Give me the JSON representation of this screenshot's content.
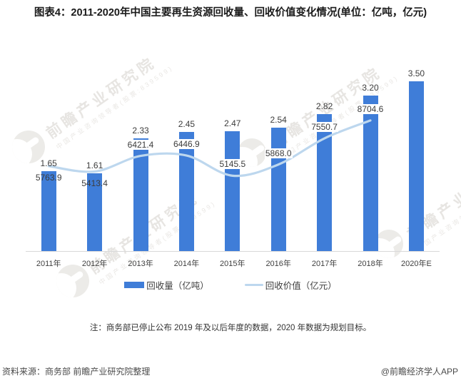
{
  "header": {
    "title": "图表4：2011-2020年中国主要再生资源回收量、回收价值变化情况(单位：亿吨，亿元)"
  },
  "chart_data": {
    "type": "bar+line",
    "categories": [
      "2011年",
      "2012年",
      "2013年",
      "2014年",
      "2015年",
      "2016年",
      "2017年",
      "2018年",
      "2020年E"
    ],
    "series": [
      {
        "name": "回收量（亿吨）",
        "type": "bar",
        "color": "#3F7DD8",
        "values": [
          1.65,
          1.61,
          2.33,
          2.45,
          2.47,
          2.54,
          2.82,
          3.2,
          3.5
        ],
        "labels": [
          "1.65",
          "1.61",
          "2.33",
          "2.45",
          "2.47",
          "2.54",
          "2.82",
          "3.20",
          "3.50"
        ]
      },
      {
        "name": "回收价值（亿元）",
        "type": "line",
        "color": "#BDD7EE",
        "values": [
          5763.9,
          5413.4,
          6421.4,
          6446.9,
          5145.5,
          5868.0,
          7550.7,
          8704.6
        ],
        "labels": [
          "5763.9",
          "5413.4",
          "6421.4",
          "6446.9",
          "5145.5",
          "5868.0",
          "7550.7",
          "8704.6"
        ],
        "label_below_point": [
          true,
          true,
          false,
          false,
          false,
          false,
          false,
          false
        ]
      }
    ],
    "title": "图表4：2011-2020年中国主要再生资源回收量、回收价值变化情况(单位：亿吨，亿元)",
    "xlabel": "",
    "ylabel": "",
    "legend_position": "bottom",
    "gridlines": false,
    "value_axes_hidden": true,
    "line_ends_at_category": "2018年"
  },
  "legend": {
    "bar_label": "回收量（亿吨）",
    "line_label": "回收价值（亿元）"
  },
  "note": {
    "text": "注：商务部已停止公布 2019 年及以后年度的数据，2020 年数据为规划目标。"
  },
  "footer": {
    "source": "资料来源：商务部 前瞻产业研究院整理",
    "credit": "@前瞻经济学人APP"
  },
  "watermark": {
    "main": "前瞻产业研究院",
    "sub": "中国产业咨询领导者(股票:839599)"
  },
  "colors": {
    "bar": "#3F7DD8",
    "line": "#BDD7EE",
    "axis": "#D9D9D9"
  }
}
